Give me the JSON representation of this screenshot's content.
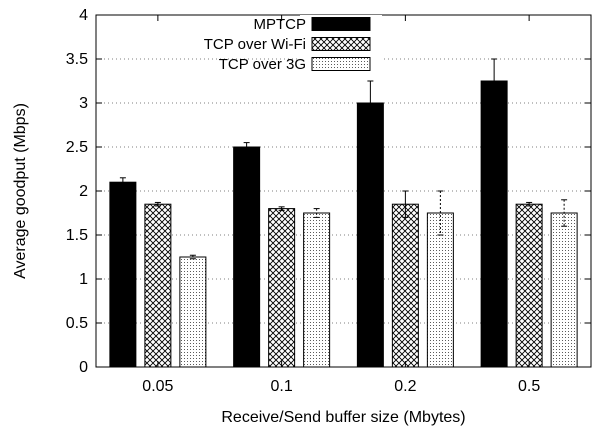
{
  "chart_data": {
    "type": "bar",
    "xlabel": "Receive/Send buffer size (Mbytes)",
    "ylabel": "Average goodput (Mbps)",
    "ylim": [
      0,
      4
    ],
    "yticks": [
      "0",
      "0.5",
      "1",
      "1.5",
      "2",
      "2.5",
      "3",
      "3.5",
      "4"
    ],
    "grid": "dotted",
    "legend_position": "top-right",
    "categories": [
      "0.05",
      "0.1",
      "0.2",
      "0.5"
    ],
    "series": [
      {
        "name": "MPTCP",
        "fill": "solid",
        "color": "#000000",
        "values": [
          2.1,
          2.5,
          3.0,
          3.25
        ],
        "err": [
          0.05,
          0.05,
          0.25,
          0.25
        ]
      },
      {
        "name": "TCP over Wi-Fi",
        "fill": "crosshatch",
        "color": "#000000",
        "values": [
          1.85,
          1.8,
          1.85,
          1.85
        ],
        "err": [
          0.02,
          0.02,
          0.15,
          0.02
        ]
      },
      {
        "name": "TCP over 3G",
        "fill": "dotted",
        "color": "#000000",
        "values": [
          1.25,
          1.75,
          1.75,
          1.75
        ],
        "err": [
          0.02,
          0.05,
          0.25,
          0.15
        ]
      }
    ]
  }
}
